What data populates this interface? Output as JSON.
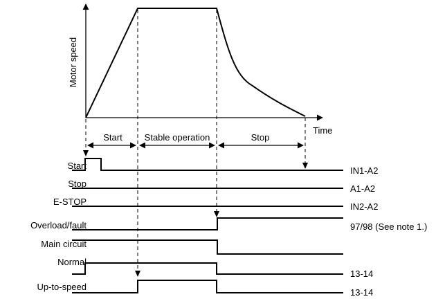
{
  "axes": {
    "y_label": "Motor speed",
    "x_label": "Time"
  },
  "phases": [
    {
      "label": "Start"
    },
    {
      "label": "Stable operation"
    },
    {
      "label": "Stop"
    }
  ],
  "signals": [
    {
      "name": "Start",
      "terminal": "IN1-A2"
    },
    {
      "name": "Stop",
      "terminal": "A1-A2"
    },
    {
      "name": "E-STOP",
      "terminal": "IN2-A2"
    },
    {
      "name": "Overload/fault",
      "terminal": "97/98 (See note 1.)"
    },
    {
      "name": "Main circuit",
      "terminal": ""
    },
    {
      "name": "Normal",
      "terminal": "13-14"
    },
    {
      "name": "Up-to-speed",
      "terminal": "13-14"
    }
  ]
}
